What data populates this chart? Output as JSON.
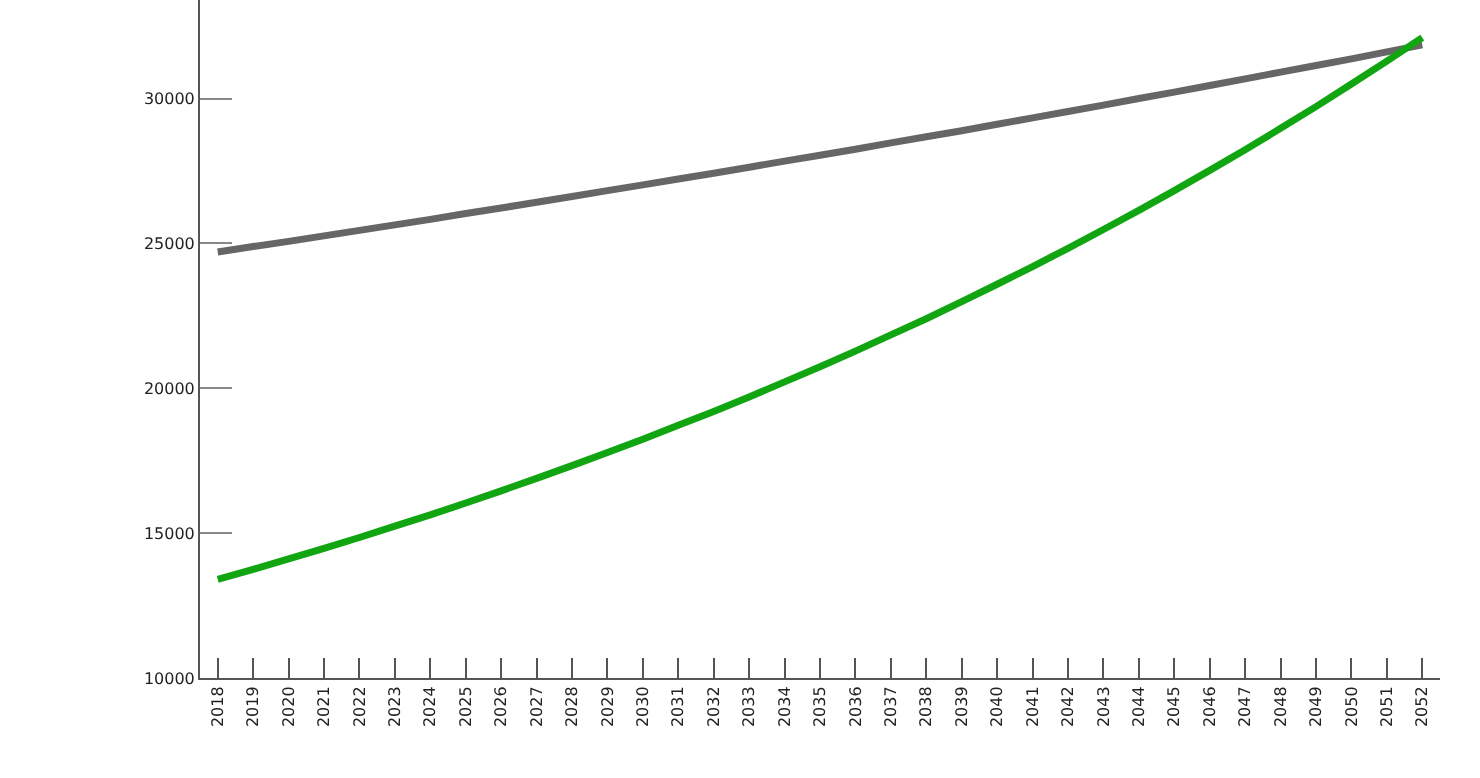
{
  "chart_data": {
    "type": "line",
    "categories": [
      "2018",
      "2019",
      "2020",
      "2021",
      "2022",
      "2023",
      "2024",
      "2025",
      "2026",
      "2027",
      "2028",
      "2029",
      "2030",
      "2031",
      "2032",
      "2033",
      "2034",
      "2035",
      "2036",
      "2037",
      "2038",
      "2039",
      "2040",
      "2041",
      "2042",
      "2043",
      "2044",
      "2045",
      "2046",
      "2047",
      "2048",
      "2049",
      "2050",
      "2051",
      "2052"
    ],
    "series": [
      {
        "color": "#666666",
        "values": [
          24700,
          24890,
          25070,
          25260,
          25450,
          25640,
          25830,
          26030,
          26220,
          26420,
          26620,
          26820,
          27020,
          27220,
          27420,
          27630,
          27840,
          28040,
          28250,
          28470,
          28680,
          28890,
          29110,
          29330,
          29550,
          29770,
          30000,
          30220,
          30450,
          30680,
          30910,
          31140,
          31370,
          31610,
          31850
        ]
      },
      {
        "color": "#11a611",
        "values": [
          13400,
          13750,
          14110,
          14470,
          14850,
          15240,
          15630,
          16040,
          16460,
          16890,
          17330,
          17780,
          18240,
          18720,
          19200,
          19700,
          20220,
          20740,
          21280,
          21840,
          22400,
          22990,
          23590,
          24200,
          24830,
          25480,
          26140,
          26820,
          27520,
          28230,
          28970,
          29720,
          30500,
          31290,
          32100
        ]
      }
    ],
    "ylim": [
      10000,
      33400
    ],
    "yticks": [
      10000,
      15000,
      20000,
      25000,
      30000
    ],
    "marker": "none",
    "line_style": "solid"
  }
}
